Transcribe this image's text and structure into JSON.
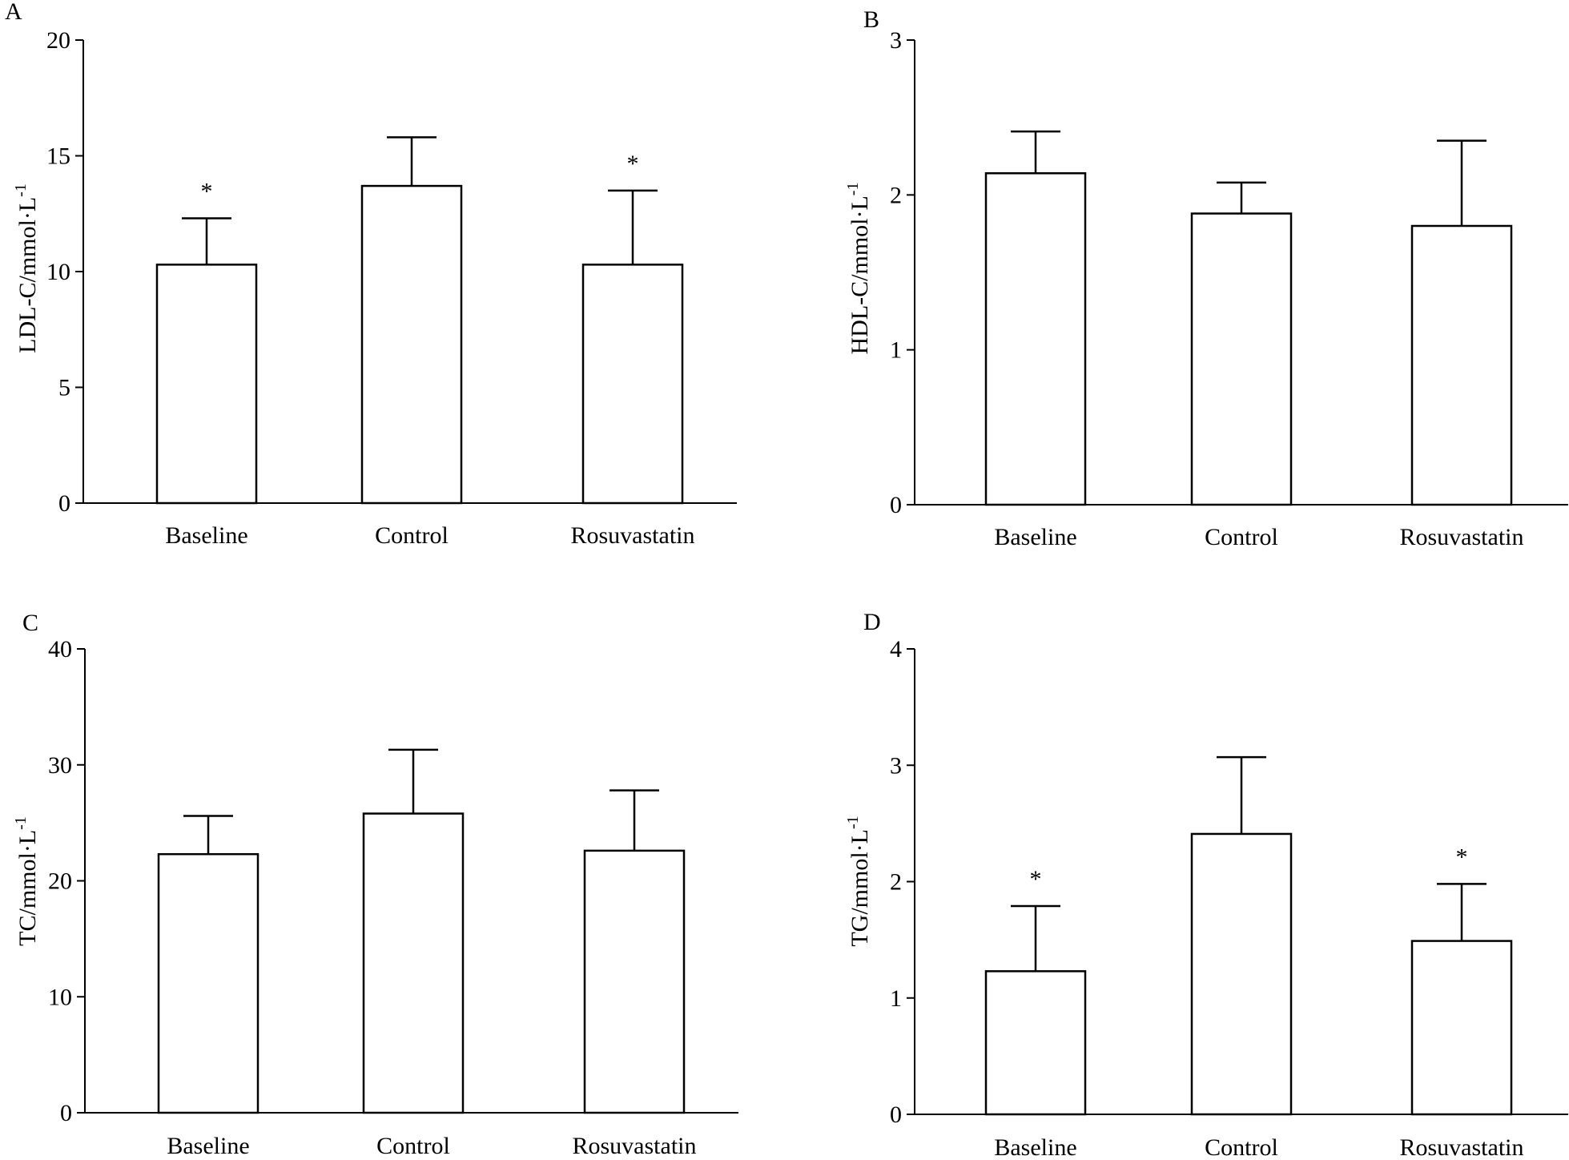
{
  "chart_data": [
    {
      "type": "bar",
      "panel": "A",
      "title": "",
      "xlabel": "",
      "ylabel": "LDL-C/mmol·L",
      "ylabel_sup": "-1",
      "categories": [
        "Baseline",
        "Control",
        "Rosuvastatin"
      ],
      "values": [
        10.3,
        13.7,
        10.3
      ],
      "errors": [
        2.0,
        2.1,
        3.2
      ],
      "annotations": [
        "*",
        "",
        "*"
      ],
      "ylim": [
        0,
        20
      ],
      "yticks": [
        0,
        5,
        10,
        15,
        20
      ],
      "grid": false,
      "legend": "none"
    },
    {
      "type": "bar",
      "panel": "B",
      "title": "",
      "xlabel": "",
      "ylabel": "HDL-C/mmol·L",
      "ylabel_sup": "-1",
      "categories": [
        "Baseline",
        "Control",
        "Rosuvastatin"
      ],
      "values": [
        2.14,
        1.88,
        1.8
      ],
      "errors": [
        0.27,
        0.2,
        0.55
      ],
      "annotations": [
        "",
        "",
        ""
      ],
      "ylim": [
        0,
        3
      ],
      "yticks": [
        0,
        1,
        2,
        3
      ],
      "grid": false,
      "legend": "none"
    },
    {
      "type": "bar",
      "panel": "C",
      "title": "",
      "xlabel": "",
      "ylabel": "TC/mmol·L",
      "ylabel_sup": "-1",
      "categories": [
        "Baseline",
        "Control",
        "Rosuvastatin"
      ],
      "values": [
        22.3,
        25.8,
        22.6
      ],
      "errors": [
        3.3,
        5.5,
        5.2
      ],
      "annotations": [
        "",
        "",
        ""
      ],
      "ylim": [
        0,
        40
      ],
      "yticks": [
        0,
        10,
        20,
        30,
        40
      ],
      "grid": false,
      "legend": "none"
    },
    {
      "type": "bar",
      "panel": "D",
      "title": "",
      "xlabel": "",
      "ylabel": "TG/mmol·L",
      "ylabel_sup": "-1",
      "categories": [
        "Baseline",
        "Control",
        "Rosuvastatin"
      ],
      "values": [
        1.23,
        2.41,
        1.49
      ],
      "errors": [
        0.56,
        0.66,
        0.49
      ],
      "annotations": [
        "*",
        "",
        "*"
      ],
      "ylim": [
        0,
        4
      ],
      "yticks": [
        0,
        1,
        2,
        3,
        4
      ],
      "grid": false,
      "legend": "none"
    }
  ]
}
